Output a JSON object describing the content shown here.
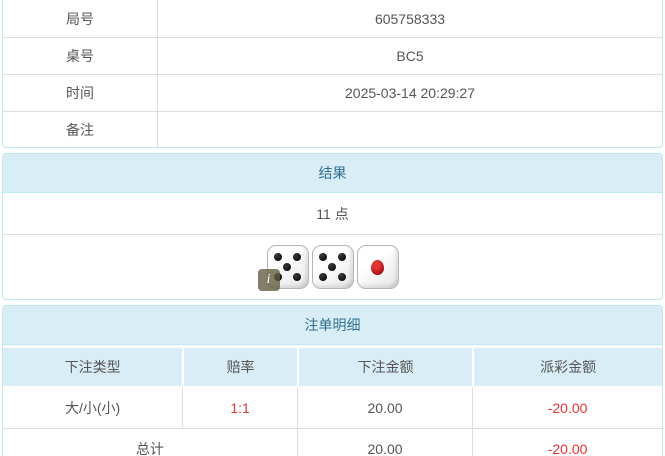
{
  "colors": {
    "panel_border": "#bce8f1",
    "heading_bg": "#d9edf7",
    "heading_text": "#31708f",
    "divider": "#dddddd",
    "body_text": "#555555",
    "negative_text": "#e53333",
    "die_pip_black": "#1c1c1c",
    "die_pip_red": "#a50f14",
    "info_badge_bg": "#5f5a3c"
  },
  "info": {
    "rows": [
      {
        "label": "局号",
        "value": "605758333"
      },
      {
        "label": "桌号",
        "value": "BC5"
      },
      {
        "label": "时间",
        "value": "2025-03-14 20:29:27"
      },
      {
        "label": "备注",
        "value": ""
      }
    ]
  },
  "result": {
    "title": "结果",
    "points": "11 点",
    "dice": [
      {
        "value": 5,
        "color": "black"
      },
      {
        "value": 5,
        "color": "black"
      },
      {
        "value": 1,
        "color": "red"
      }
    ],
    "info_badge": "i"
  },
  "bets": {
    "title": "注单明细",
    "columns": [
      "下注类型",
      "赔率",
      "下注金额",
      "派彩金额"
    ],
    "rows": [
      {
        "type": "大/小(小)",
        "odds": "1:1",
        "amount": "20.00",
        "payout": "-20.00"
      }
    ],
    "total": {
      "label": "总计",
      "amount": "20.00",
      "payout": "-20.00"
    }
  }
}
